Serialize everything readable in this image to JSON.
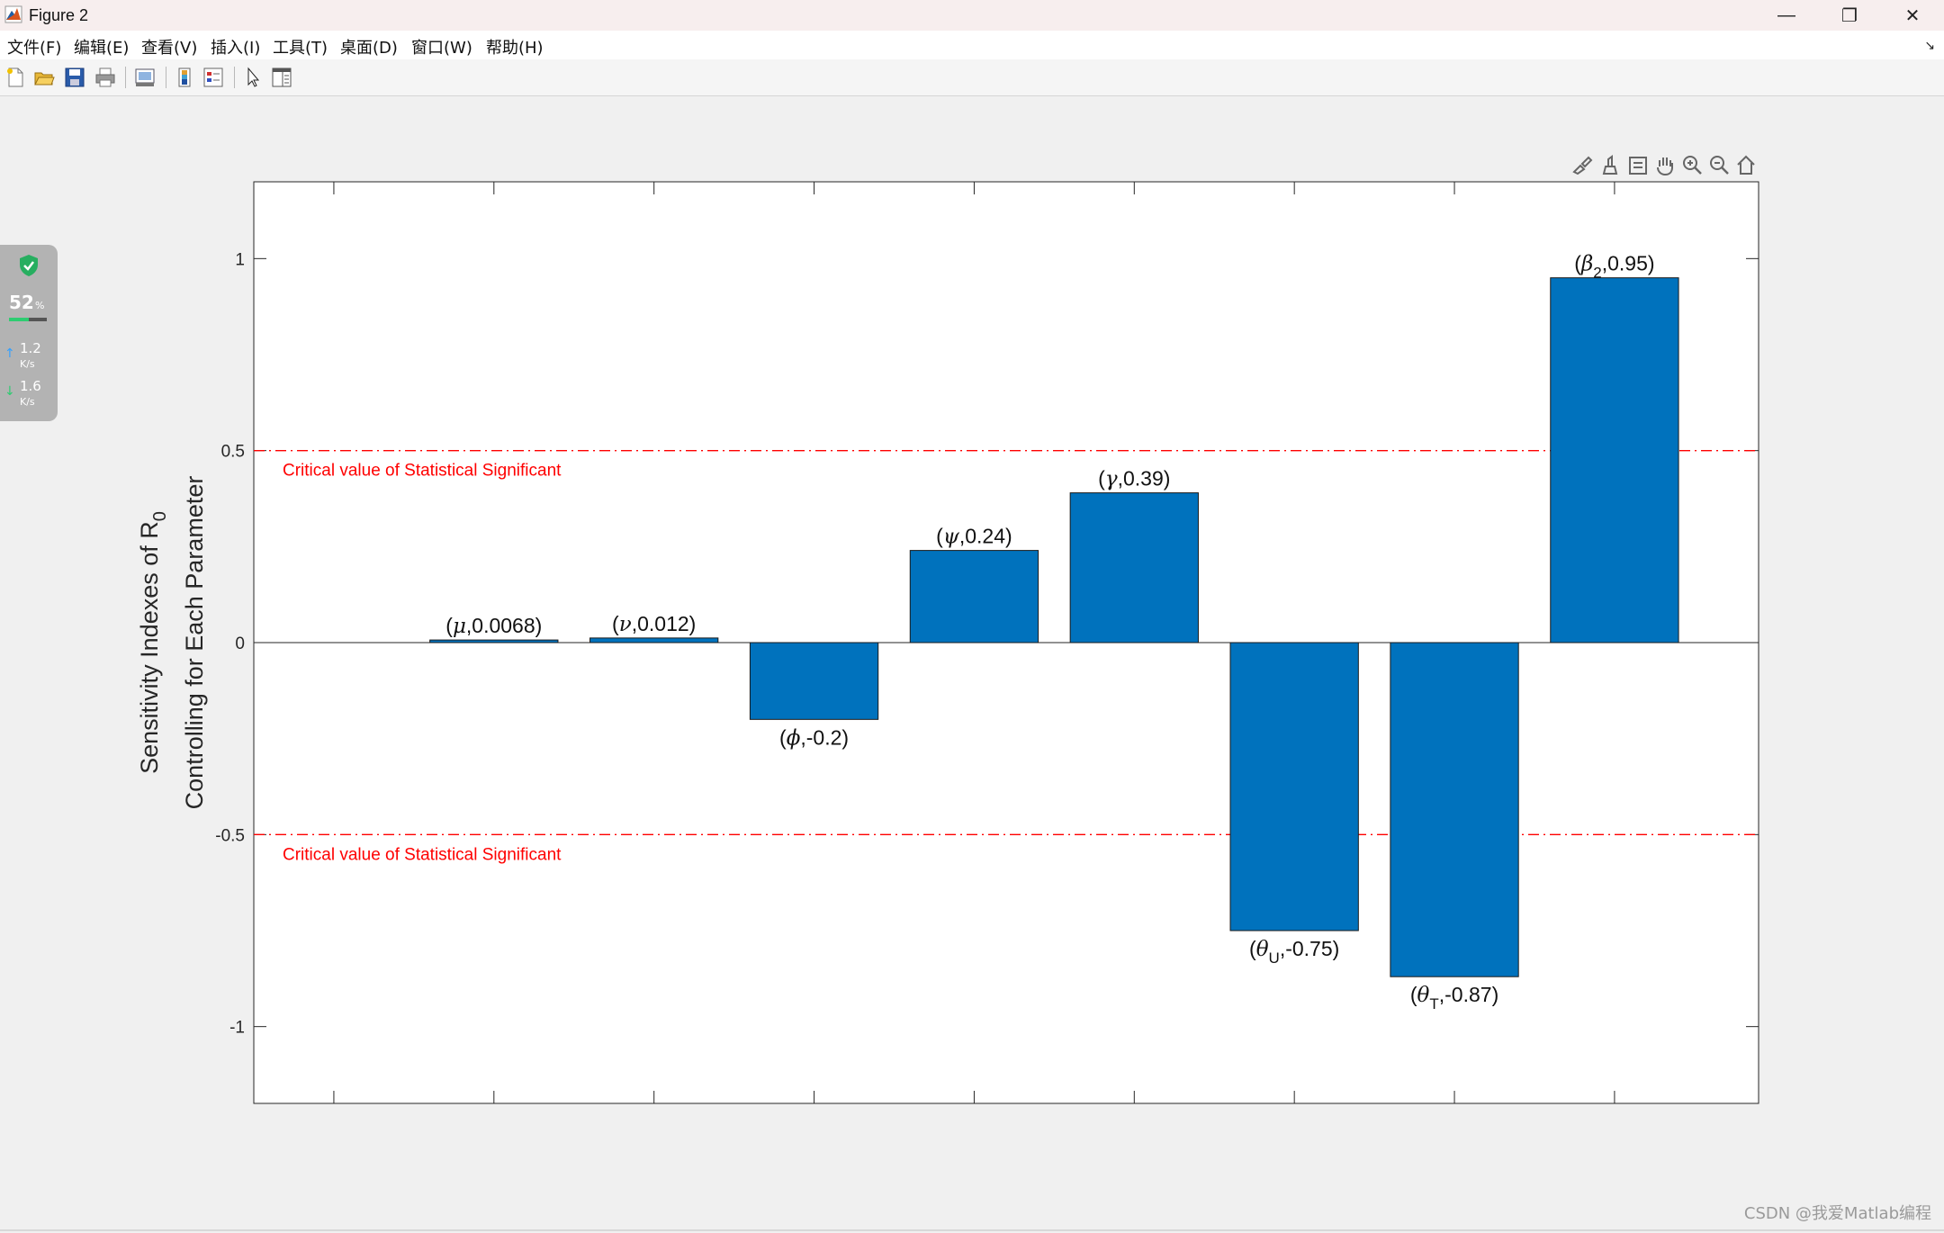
{
  "window": {
    "title": "Figure 2",
    "controls": {
      "minimize": "—",
      "restore": "❐",
      "close": "✕"
    }
  },
  "menu": {
    "items": [
      "文件(F)",
      "编辑(E)",
      "查看(V)",
      "插入(I)",
      "工具(T)",
      "桌面(D)",
      "窗口(W)",
      "帮助(H)"
    ],
    "corner": "↘"
  },
  "toolbar": {
    "icons": [
      "new-figure-icon",
      "open-file-icon",
      "save-icon",
      "print-icon",
      "link-plot-icon",
      "insert-colorbar-icon",
      "insert-legend-icon",
      "edit-plot-arrow-icon",
      "property-inspector-icon"
    ]
  },
  "axes_toolbar": {
    "icons": [
      "brush-data-icon",
      "data-tips-icon",
      "data-cursor-icon",
      "pan-hand-icon",
      "zoom-in-icon",
      "zoom-out-icon",
      "restore-view-home-icon"
    ]
  },
  "side_widget": {
    "percent": "52",
    "percent_unit": "%",
    "upload": "1.2",
    "upload_unit": "K/s",
    "download": "1.6",
    "download_unit": "K/s",
    "accent": "#27ae60"
  },
  "watermark": "CSDN @我爱Matlab编程",
  "chart_data": {
    "type": "bar",
    "title": "",
    "xlabel": "",
    "ylabel_lines": [
      "Sensitivity Indexes of R",
      "Controlling for Each Parameter"
    ],
    "ylabel_subscript": "0",
    "ylim": [
      -1.2,
      1.2
    ],
    "yticks": [
      -1,
      -0.5,
      0,
      0.5,
      1
    ],
    "ytick_labels": [
      "-1",
      "-0.5",
      "0",
      "0.5",
      "1"
    ],
    "x_positions": [
      1,
      2,
      3,
      4,
      5,
      6,
      7,
      8,
      9,
      10
    ],
    "xlim": [
      0.5,
      9.9
    ],
    "bar_color": "#0072bd",
    "bars": [
      {
        "x": 2,
        "value": 0.0068,
        "symbol": "μ",
        "sub": "",
        "value_label": ",0.0068)"
      },
      {
        "x": 3,
        "value": 0.012,
        "symbol": "ν",
        "sub": "",
        "value_label": ",0.012)"
      },
      {
        "x": 4,
        "value": -0.2,
        "symbol": "ϕ",
        "sub": "",
        "value_label": ",-0.2)"
      },
      {
        "x": 5,
        "value": 0.24,
        "symbol": "ψ",
        "sub": "",
        "value_label": ",0.24)"
      },
      {
        "x": 6,
        "value": 0.39,
        "symbol": "γ",
        "sub": "",
        "value_label": ",0.39)"
      },
      {
        "x": 7,
        "value": -0.75,
        "symbol": "θ",
        "sub": "U",
        "value_label": ",-0.75)"
      },
      {
        "x": 8,
        "value": -0.87,
        "symbol": "θ",
        "sub": "T",
        "value_label": ",-0.87)"
      },
      {
        "x": 9,
        "value": 0.95,
        "symbol": "β",
        "sub": "2",
        "value_label": ",0.95)"
      }
    ],
    "reference_lines": [
      {
        "y": 0.5,
        "label": "Critical value of Statistical Significant",
        "color": "#ff0000",
        "style": "dash-dot"
      },
      {
        "y": -0.5,
        "label": "Critical value of Statistical Significant",
        "color": "#ff0000",
        "style": "dash-dot"
      }
    ],
    "zero_line": true,
    "grid": false,
    "box": true
  }
}
